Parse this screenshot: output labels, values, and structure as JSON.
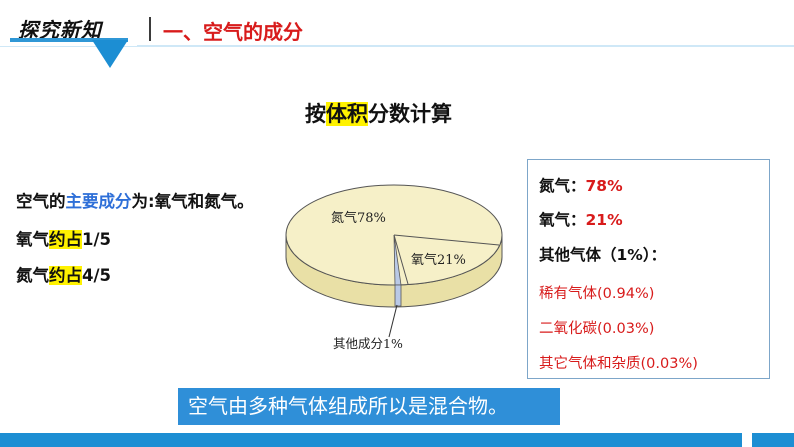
{
  "header": {
    "section_tab": "探究新知",
    "title": "一、空气的成分"
  },
  "calc_title": {
    "prefix": "按",
    "highlight": "体积",
    "suffix": "分数计算"
  },
  "left_text": {
    "line1_prefix": "空气的",
    "line1_blue": "主要成分",
    "line1_suffix": "为:氧气和氮气。",
    "line2_prefix": "氧气",
    "line2_highlight": "约占",
    "line2_suffix": "1/5",
    "line3_prefix": "氮气",
    "line3_highlight": "约占",
    "line3_suffix": "4/5"
  },
  "pie": {
    "label_nitrogen": "氮气78%",
    "label_oxygen": "氧气21%",
    "label_other": "其他成分1%",
    "colors": {
      "top": "#f6f0c8",
      "side": "#e9e0a6",
      "edge": "#555555",
      "other_slice": "#b9c9e6"
    }
  },
  "chart_data": {
    "type": "pie",
    "labels": [
      "氮气",
      "氧气",
      "其他成分"
    ],
    "values": [
      78,
      21,
      1
    ]
  },
  "info_panel": {
    "nitrogen_label": "氮气：",
    "nitrogen_value": "78%",
    "oxygen_label": "氧气：",
    "oxygen_value": "21%",
    "other_label": "其他气体（1%）：",
    "rare_gas": "稀有气体(0.94%)",
    "co2": "二氧化碳(0.03%)",
    "impurities": "其它气体和杂质(0.03%)"
  },
  "conclusion": "空气由多种气体组成所以是混合物。",
  "colors": {
    "accent_blue": "#1c8ed3",
    "title_red": "#d81b1b",
    "highlight_yellow": "#fff200",
    "text_blue": "#2e6fd8"
  }
}
